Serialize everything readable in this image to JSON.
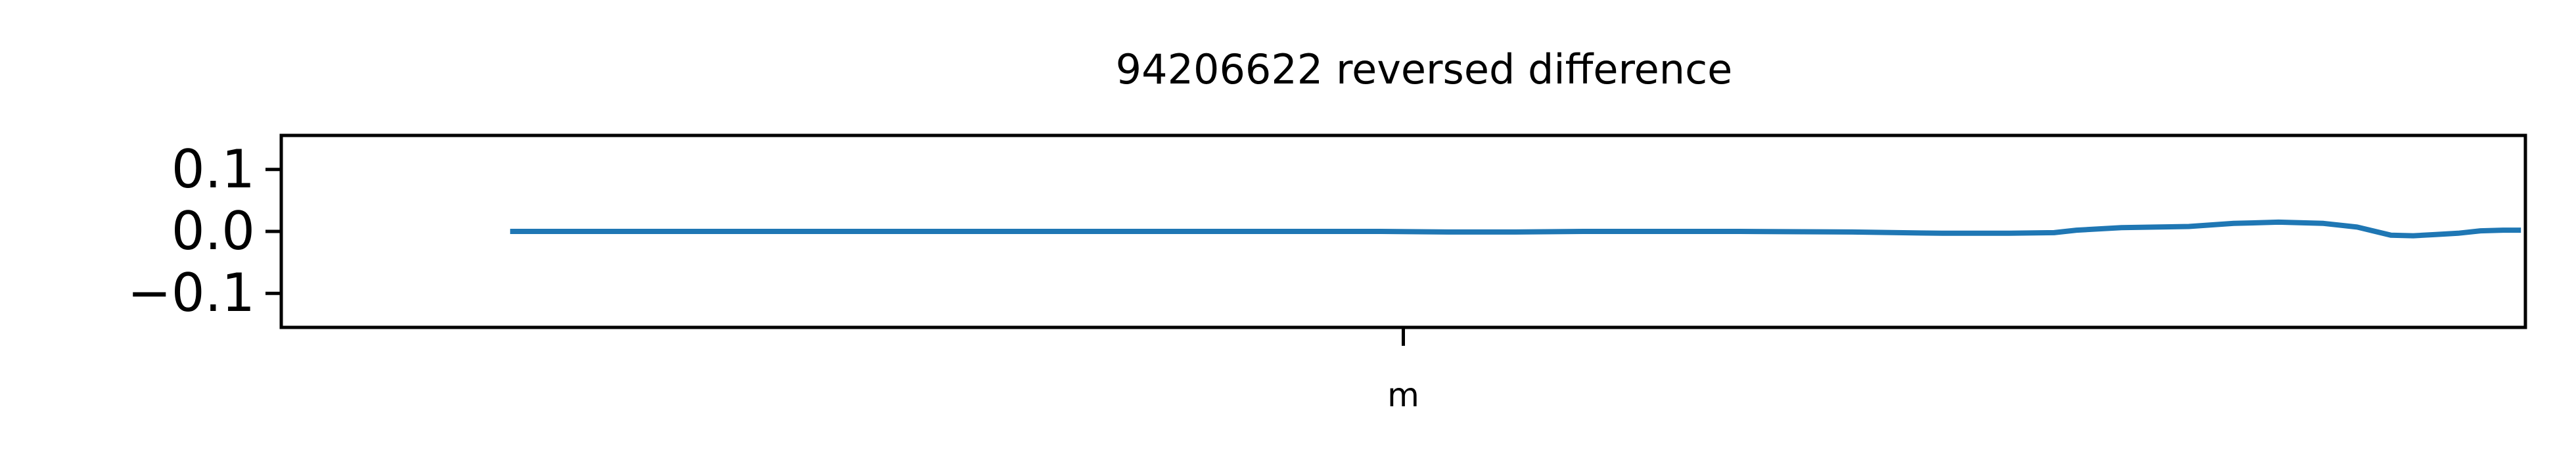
{
  "chart_data": {
    "type": "line",
    "title": "94206622 reversed difference",
    "xlabel": "",
    "ylabel": "",
    "x_ticks": [
      {
        "value": 0.5,
        "label": "m"
      }
    ],
    "y_ticks": [
      {
        "value": 0.1,
        "label": "0.1"
      },
      {
        "value": 0.0,
        "label": "0.0"
      },
      {
        "value": -0.1,
        "label": "−0.1"
      }
    ],
    "xlim": [
      0,
      1
    ],
    "ylim": [
      -0.155,
      0.155
    ],
    "grid": false,
    "legend": false,
    "series": [
      {
        "color": "#1f77b4",
        "x": [
          0.102,
          0.2,
          0.3,
          0.37,
          0.42,
          0.46,
          0.49,
          0.52,
          0.55,
          0.58,
          0.6,
          0.65,
          0.7,
          0.74,
          0.77,
          0.79,
          0.8,
          0.82,
          0.835,
          0.85,
          0.87,
          0.89,
          0.91,
          0.925,
          0.94,
          0.95,
          0.96,
          0.97,
          0.98,
          0.99,
          0.998
        ],
        "y": [
          0.0,
          0.0,
          0.0,
          0.0,
          0.0,
          0.0,
          0.0,
          -0.001,
          -0.001,
          0.0,
          0.0,
          0.0,
          -0.001,
          -0.003,
          -0.003,
          -0.002,
          0.002,
          0.006,
          0.007,
          0.008,
          0.013,
          0.015,
          0.013,
          0.007,
          -0.006,
          -0.007,
          -0.005,
          -0.003,
          0.001,
          0.002,
          0.002
        ]
      }
    ]
  }
}
